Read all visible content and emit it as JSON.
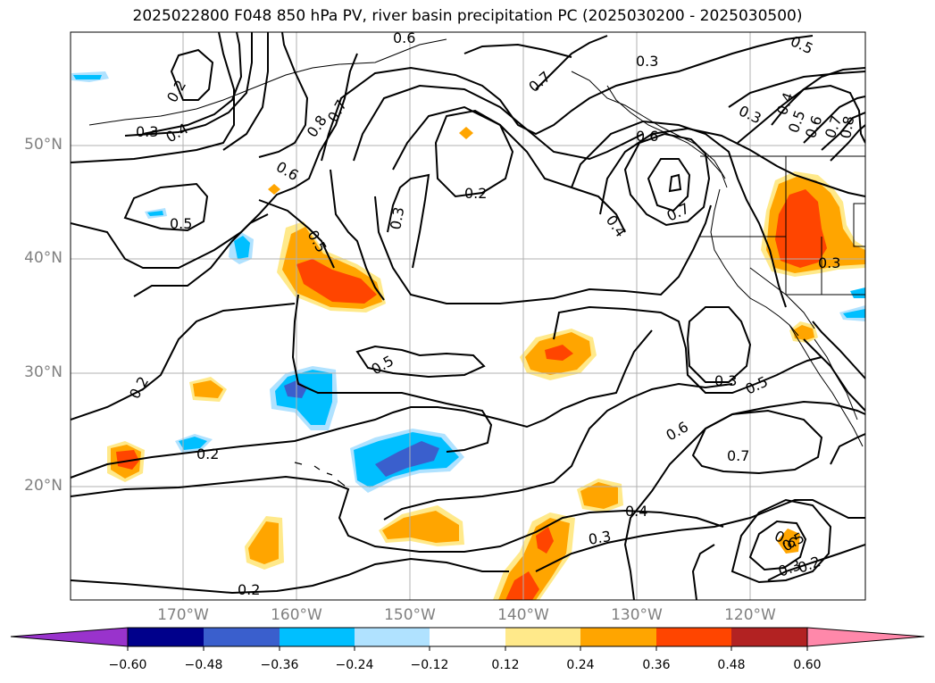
{
  "title": "2025022800 F048 850 hPa PV, river basin precipitation PC (2025030200 - 2025030500)",
  "lat_labels": [
    {
      "text": "50°N",
      "lat": 50
    },
    {
      "text": "40°N",
      "lat": 40
    },
    {
      "text": "30°N",
      "lat": 30
    },
    {
      "text": "20°N",
      "lat": 20
    }
  ],
  "lon_labels": [
    {
      "text": "170°W",
      "lon": -170
    },
    {
      "text": "160°W",
      "lon": -160
    },
    {
      "text": "150°W",
      "lon": -150
    },
    {
      "text": "140°W",
      "lon": -140
    },
    {
      "text": "130°W",
      "lon": -130
    },
    {
      "text": "120°W",
      "lon": -120
    }
  ],
  "colorbar": {
    "ticks": [
      "−0.60",
      "−0.48",
      "−0.36",
      "−0.24",
      "−0.12",
      "0.12",
      "0.24",
      "0.36",
      "0.48",
      "0.60"
    ],
    "colors": [
      "#9933cc",
      "#00008b",
      "#3a5fcd",
      "#00bfff",
      "#b0e2ff",
      "#ffffff",
      "#ffe98a",
      "#ffa500",
      "#ff4500",
      "#b22222",
      "#ff88aa"
    ]
  },
  "contour_labels": [
    "0.6",
    "0.5",
    "0.3",
    "0.7",
    "0.2",
    "0.3",
    "0.4",
    "0.8",
    "0.7",
    "0.6",
    "0.5",
    "0.5",
    "0.2",
    "0.3",
    "0.6",
    "0.7",
    "0.4",
    "0.3",
    "0.4",
    "0.5",
    "0.6",
    "0.7",
    "0.8",
    "0.3",
    "0.5",
    "0.3",
    "0.6",
    "0.7",
    "0.4",
    "0.3",
    "0.2",
    "0.2",
    "0.2",
    "0.6",
    "0.5",
    "0.3",
    "0.2",
    "0.5"
  ]
}
